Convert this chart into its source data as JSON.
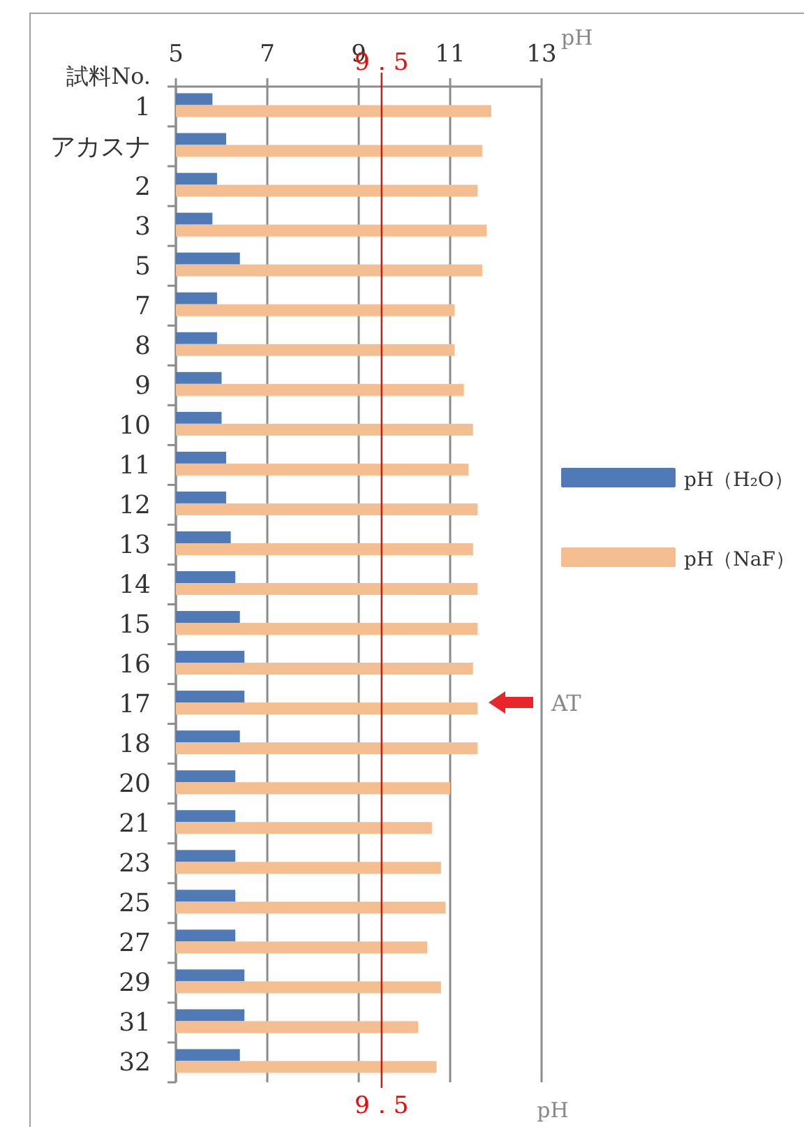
{
  "chart_data": {
    "type": "bar",
    "orientation": "horizontal",
    "ylabel": "試料No.",
    "xlabel": "pH",
    "categories": [
      "1",
      "アカスナ",
      "2",
      "3",
      "5",
      "7",
      "8",
      "9",
      "10",
      "11",
      "12",
      "13",
      "14",
      "15",
      "16",
      "17",
      "18",
      "20",
      "21",
      "23",
      "25",
      "27",
      "29",
      "31",
      "32"
    ],
    "series": [
      {
        "name": "pH（H₂O）",
        "color": "#4f7ab6",
        "values": [
          5.8,
          6.1,
          5.9,
          5.8,
          6.4,
          5.9,
          5.9,
          6.0,
          6.0,
          6.1,
          6.1,
          6.2,
          6.3,
          6.4,
          6.5,
          6.5,
          6.4,
          6.3,
          6.3,
          6.3,
          6.3,
          6.3,
          6.5,
          6.5,
          6.4
        ]
      },
      {
        "name": "pH（NaF）",
        "color": "#f5be90",
        "values": [
          11.9,
          11.7,
          11.6,
          11.8,
          11.7,
          11.1,
          11.1,
          11.3,
          11.5,
          11.4,
          11.6,
          11.5,
          11.6,
          11.6,
          11.5,
          11.6,
          11.6,
          11.0,
          10.6,
          10.8,
          10.9,
          10.5,
          10.8,
          10.3,
          10.7
        ]
      }
    ],
    "xlim": [
      5,
      13
    ],
    "xticks": [
      5,
      7,
      9,
      11,
      13
    ],
    "grid": "x",
    "legend": "right",
    "ref_lines": [
      {
        "axis": "x",
        "value": 9.5,
        "label": "9．5",
        "color": "#ff0000"
      }
    ],
    "annotations": [
      "AT",
      "pH"
    ]
  }
}
